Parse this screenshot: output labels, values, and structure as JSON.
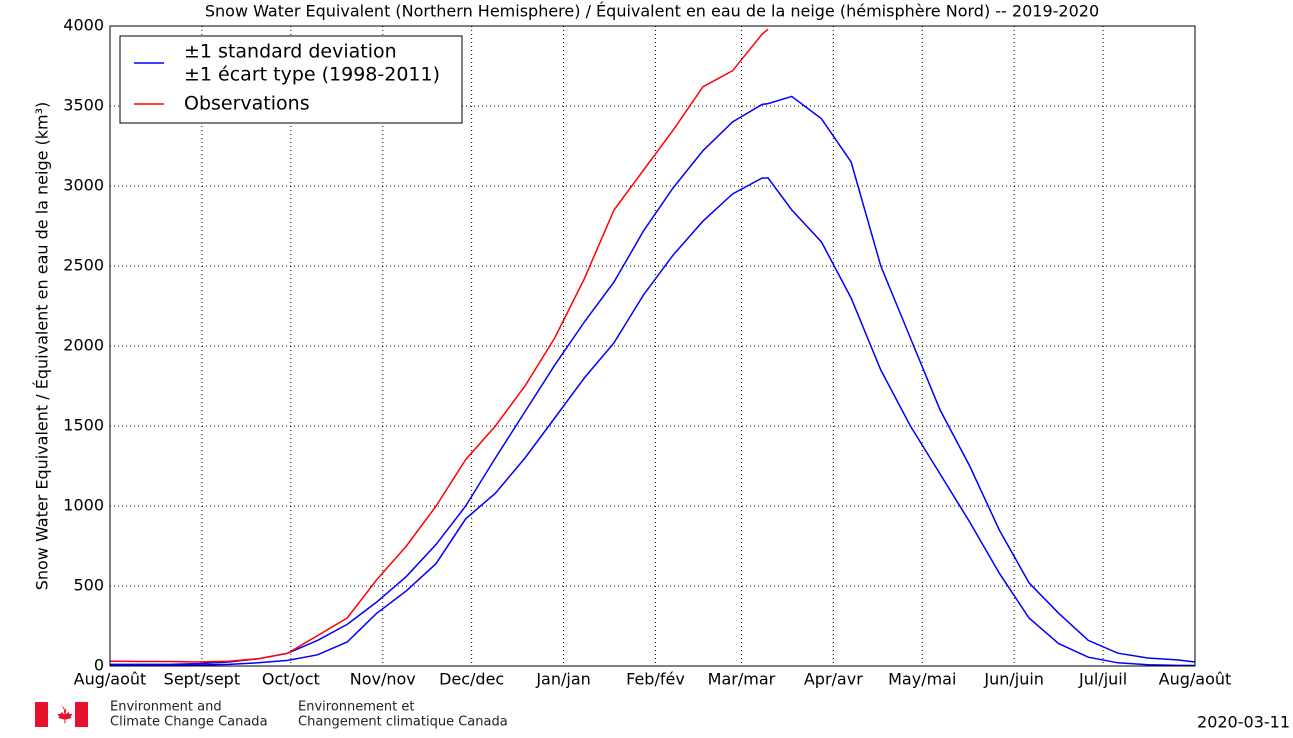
{
  "chart_data": {
    "type": "line",
    "title": "Snow Water Equivalent (Northern Hemisphere) / Équivalent en eau de la neige (hémisphère Nord) -- 2019-2020",
    "y_label": "Snow Water Equivalent / Équivalent en eau de la neige (km³)",
    "x": [
      0,
      10,
      20,
      30,
      40,
      50,
      60,
      70,
      80,
      90,
      100,
      110,
      120,
      130,
      140,
      150,
      160,
      170,
      180,
      190,
      200,
      210,
      220,
      222,
      230,
      240,
      250,
      260,
      270,
      280,
      290,
      300,
      310,
      320,
      330,
      340,
      350,
      360,
      366
    ],
    "xlim": [
      0,
      366
    ],
    "xticks": [
      {
        "value": 0,
        "label": "Aug/août"
      },
      {
        "value": 31,
        "label": "Sept/sept"
      },
      {
        "value": 61,
        "label": "Oct/oct"
      },
      {
        "value": 92,
        "label": "Nov/nov"
      },
      {
        "value": 122,
        "label": "Dec/dec"
      },
      {
        "value": 153,
        "label": "Jan/jan"
      },
      {
        "value": 184,
        "label": "Feb/fév"
      },
      {
        "value": 213,
        "label": "Mar/mar"
      },
      {
        "value": 244,
        "label": "Apr/avr"
      },
      {
        "value": 274,
        "label": "May/mai"
      },
      {
        "value": 305,
        "label": "Jun/juin"
      },
      {
        "value": 335,
        "label": "Jul/juil"
      },
      {
        "value": 366,
        "label": "Aug/août"
      }
    ],
    "ylim": [
      0,
      4000
    ],
    "yticks": [
      0,
      500,
      1000,
      1500,
      2000,
      2500,
      3000,
      3500,
      4000
    ],
    "grid": true,
    "legend": "upper left",
    "series": [
      {
        "name": [
          "±1 standard deviation",
          "±1 écart type (1998-2011)"
        ],
        "color": "#0000ff",
        "values": [
          10,
          10,
          10,
          15,
          25,
          45,
          80,
          160,
          260,
          400,
          560,
          760,
          1000,
          1300,
          1590,
          1880,
          2150,
          2400,
          2720,
          2990,
          3220,
          3400,
          3510,
          3515,
          3560,
          3420,
          3150,
          2500,
          2050,
          1600,
          1250,
          850,
          520,
          330,
          160,
          80,
          50,
          38,
          25
        ],
        "lower_values": [
          5,
          5,
          5,
          6,
          10,
          20,
          35,
          70,
          150,
          330,
          470,
          640,
          920,
          1080,
          1300,
          1550,
          1800,
          2020,
          2320,
          2570,
          2780,
          2950,
          3050,
          3050,
          2850,
          2650,
          2300,
          1850,
          1500,
          1200,
          900,
          580,
          300,
          140,
          55,
          20,
          8,
          4,
          3
        ]
      },
      {
        "name": "Observations",
        "color": "#ff0000",
        "values": [
          30,
          28,
          28,
          25,
          30,
          45,
          80,
          190,
          300,
          540,
          750,
          1000,
          1290,
          1500,
          1750,
          2050,
          2420,
          2850,
          3100,
          3350,
          3620,
          3720,
          3950,
          3980,
          null,
          null,
          null,
          null,
          null,
          null,
          null,
          null,
          null,
          null,
          null,
          null,
          null,
          null,
          null
        ]
      }
    ]
  },
  "footer": {
    "department_en": [
      "Environment and",
      "Climate Change Canada"
    ],
    "department_fr": [
      "Environnement et",
      "Changement climatique Canada"
    ],
    "date": "2020-03-11"
  }
}
